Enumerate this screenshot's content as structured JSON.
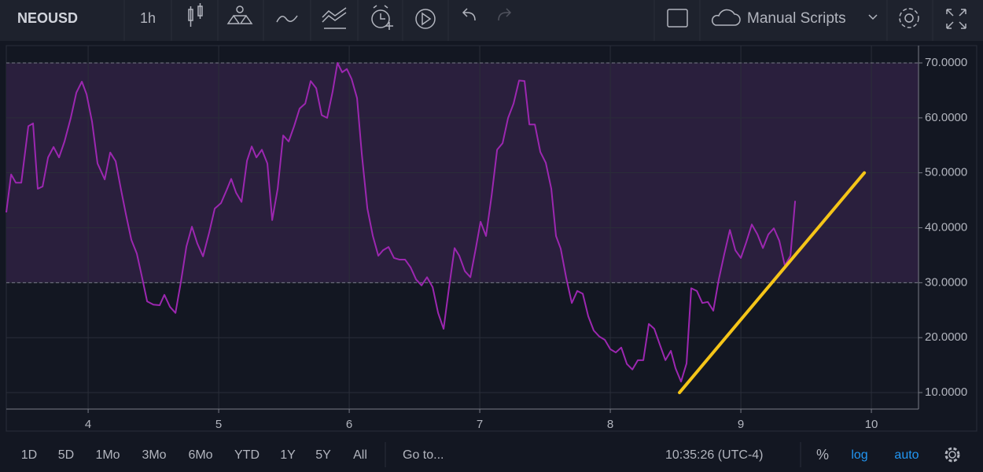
{
  "toolbar": {
    "symbol": "NEOUSD",
    "interval": "1h",
    "scripts": "Manual Scripts"
  },
  "chart_data": {
    "type": "line",
    "color": "#9c27b0",
    "x": [
      3.373,
      3.41,
      3.446,
      3.488,
      3.542,
      3.578,
      3.614,
      3.651,
      3.693,
      3.735,
      3.777,
      3.819,
      3.867,
      3.91,
      3.952,
      3.988,
      4.03,
      4.072,
      4.127,
      4.169,
      4.211,
      4.253,
      4.289,
      4.331,
      4.373,
      4.41,
      4.452,
      4.5,
      4.548,
      4.584,
      4.627,
      4.669,
      4.711,
      4.753,
      4.795,
      4.837,
      4.88,
      4.928,
      4.97,
      5.018,
      5.06,
      5.096,
      5.133,
      5.175,
      5.217,
      5.253,
      5.289,
      5.331,
      5.373,
      5.41,
      5.452,
      5.494,
      5.536,
      5.578,
      5.62,
      5.663,
      5.705,
      5.747,
      5.789,
      5.831,
      5.873,
      5.91,
      5.946,
      5.982,
      6.018,
      6.06,
      6.096,
      6.139,
      6.181,
      6.223,
      6.259,
      6.301,
      6.343,
      6.386,
      6.428,
      6.47,
      6.512,
      6.554,
      6.596,
      6.639,
      6.681,
      6.723,
      6.765,
      6.807,
      6.843,
      6.886,
      6.928,
      6.97,
      7.006,
      7.048,
      7.09,
      7.133,
      7.175,
      7.217,
      7.259,
      7.301,
      7.343,
      7.38,
      7.422,
      7.464,
      7.506,
      7.548,
      7.584,
      7.62,
      7.663,
      7.705,
      7.747,
      7.789,
      7.831,
      7.873,
      7.916,
      7.958,
      8.0,
      8.042,
      8.084,
      8.127,
      8.169,
      8.211,
      8.253,
      8.295,
      8.337,
      8.38,
      8.422,
      8.464,
      8.5,
      8.542,
      8.584,
      8.62,
      8.663,
      8.705,
      8.747,
      8.789,
      8.831,
      8.873,
      8.916,
      8.958,
      9.0,
      9.042,
      9.084,
      9.127,
      9.169,
      9.211,
      9.253,
      9.295,
      9.337,
      9.38,
      9.416
    ],
    "values": [
      42.8,
      49.7,
      48.2,
      48.2,
      58.5,
      59.0,
      47.1,
      47.5,
      52.8,
      54.7,
      52.8,
      55.7,
      60.0,
      64.6,
      66.6,
      64.3,
      59.3,
      51.7,
      48.8,
      53.7,
      52.1,
      46.8,
      42.5,
      37.8,
      35.3,
      31.3,
      26.6,
      26.0,
      25.9,
      27.8,
      25.6,
      24.5,
      30.2,
      36.6,
      40.2,
      37.1,
      34.8,
      39.2,
      43.5,
      44.5,
      46.8,
      48.9,
      46.4,
      44.7,
      52.2,
      54.8,
      52.8,
      54.2,
      51.7,
      41.4,
      47.1,
      56.8,
      55.7,
      58.5,
      61.7,
      62.6,
      66.7,
      65.4,
      60.5,
      60.0,
      64.8,
      70.0,
      68.3,
      68.9,
      67.1,
      63.6,
      53.5,
      43.5,
      38.5,
      34.9,
      35.9,
      36.5,
      34.5,
      34.2,
      34.2,
      32.8,
      30.6,
      29.5,
      31.0,
      29.2,
      24.5,
      21.6,
      29.2,
      36.3,
      34.9,
      32.1,
      31.0,
      36.3,
      41.1,
      38.5,
      45.7,
      54.2,
      55.4,
      60.0,
      62.6,
      66.8,
      66.7,
      58.8,
      58.8,
      53.8,
      51.8,
      47.1,
      38.5,
      36.2,
      30.8,
      26.3,
      28.5,
      28.0,
      23.9,
      21.3,
      20.2,
      19.6,
      17.9,
      17.3,
      18.2,
      15.2,
      14.2,
      15.9,
      15.9,
      22.5,
      21.6,
      18.7,
      15.9,
      17.6,
      14.4,
      12.0,
      15.3,
      29.0,
      28.5,
      26.3,
      26.5,
      24.9,
      30.6,
      35.2,
      39.6,
      35.9,
      34.5,
      37.4,
      40.6,
      38.8,
      36.3,
      38.8,
      39.9,
      37.6,
      33.1,
      34.9,
      44.9
    ],
    "trend_line": {
      "color": "#f5c518",
      "x": [
        8.53,
        9.946
      ],
      "values": [
        10,
        50
      ]
    },
    "band": [
      30,
      70
    ],
    "band_color": "#2a1f3d",
    "xlim": [
      3.373,
      10.361
    ],
    "ylim": [
      7.0,
      73.15
    ],
    "xticks": [
      4,
      5,
      6,
      7,
      8,
      9,
      10
    ],
    "yticks": [
      {
        "value": 10,
        "label": "10.0000"
      },
      {
        "value": 20,
        "label": "20.0000"
      },
      {
        "value": 30,
        "label": "30.0000"
      },
      {
        "value": 40,
        "label": "40.0000"
      },
      {
        "value": 50,
        "label": "50.0000"
      },
      {
        "value": 60,
        "label": "60.0000"
      },
      {
        "value": 70,
        "label": "70.0000"
      }
    ],
    "grid": true
  },
  "bottom_bar": {
    "ranges": [
      "1D",
      "5D",
      "1Mo",
      "3Mo",
      "6Mo",
      "YTD",
      "1Y",
      "5Y",
      "All"
    ],
    "goto": "Go to...",
    "time": "10:35:26 (UTC-4)",
    "percent": "%",
    "log": "log",
    "auto": "auto"
  }
}
